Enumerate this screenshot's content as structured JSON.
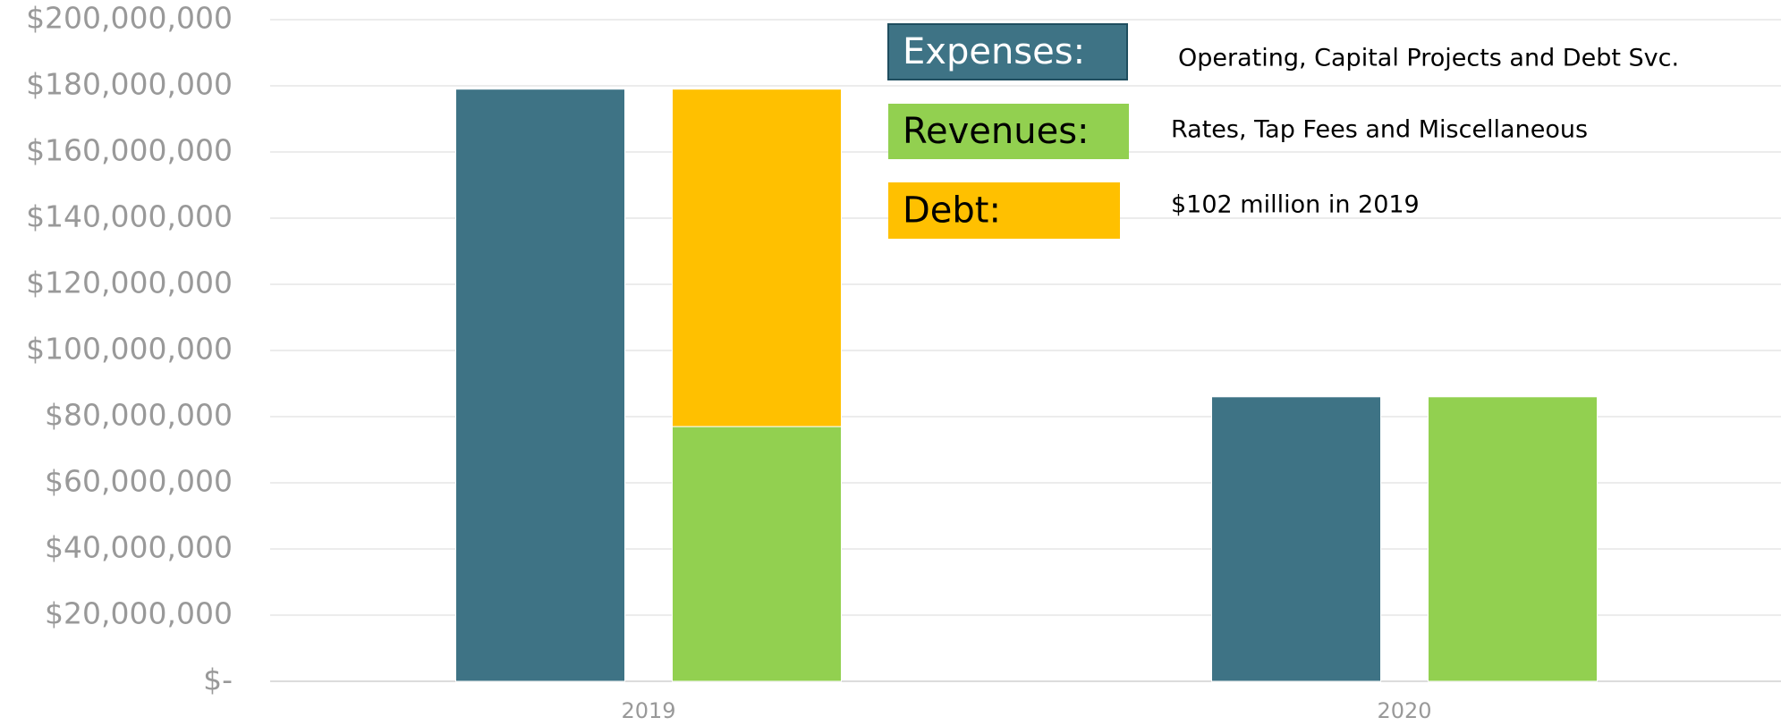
{
  "chart_data": {
    "type": "bar",
    "categories": [
      "2019",
      "2020"
    ],
    "series": [
      {
        "name": "Expenses:",
        "description": "Operating, Capital Projects and Debt Svc.",
        "color": "#3e7385",
        "values": [
          179000000,
          86000000
        ]
      },
      {
        "name": "Revenues:",
        "description": "Rates, Tap Fees and Miscellaneous",
        "color": "#92d050",
        "values": [
          77000000,
          86000000
        ]
      },
      {
        "name": "Debt:",
        "description": "$102 million in 2019",
        "color": "#ffc000",
        "values": [
          102000000,
          null
        ]
      }
    ],
    "ylim": [
      0,
      200000000
    ],
    "yticks": [
      {
        "value": 0,
        "label": "$-"
      },
      {
        "value": 20000000,
        "label": "$20,000,000"
      },
      {
        "value": 40000000,
        "label": "$40,000,000"
      },
      {
        "value": 60000000,
        "label": "$60,000,000"
      },
      {
        "value": 80000000,
        "label": "$80,000,000"
      },
      {
        "value": 100000000,
        "label": "$100,000,000"
      },
      {
        "value": 120000000,
        "label": "$120,000,000"
      },
      {
        "value": 140000000,
        "label": "$140,000,000"
      },
      {
        "value": 160000000,
        "label": "$160,000,000"
      },
      {
        "value": 180000000,
        "label": "$180,000,000"
      },
      {
        "value": 200000000,
        "label": "$200,000,000"
      }
    ],
    "grid": true
  }
}
